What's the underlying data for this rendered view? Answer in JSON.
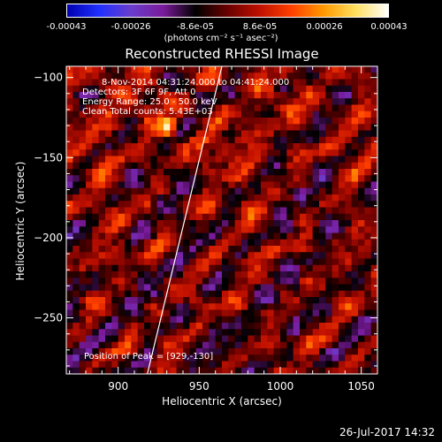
{
  "colorbar": {
    "ticks": [
      "-0.00043",
      "-0.00026",
      "-8.6e-05",
      "8.6e-05",
      "0.00026",
      "0.00043"
    ],
    "units": "(photons cm⁻² s⁻¹ asec⁻²)",
    "stops": [
      "#0000b0",
      "#2030ff",
      "#6a3dcc",
      "#7a1a9a",
      "#000000",
      "#6a0000",
      "#c01000",
      "#ff4000",
      "#ff9a00",
      "#ffe060",
      "#ffffff"
    ]
  },
  "chart_data": {
    "type": "heatmap",
    "title": "Reconstructed RHESSI Image",
    "xlabel": "Heliocentric X (arcsec)",
    "ylabel": "Heliocentric Y (arcsec)",
    "xlim": [
      868,
      1060
    ],
    "ylim": [
      -285,
      -93
    ],
    "xticks": [
      900,
      950,
      1000,
      1050
    ],
    "yticks": [
      -100,
      -150,
      -200,
      -250
    ],
    "value_range": [
      -0.00043,
      0.00043
    ],
    "peak": [
      929,
      -130
    ],
    "limb_line": {
      "x": [
        918,
        964
      ],
      "y": [
        -285,
        -93
      ]
    },
    "annotations": [
      "8-Nov-2014 04:31:24.000 to 04:41:24.000",
      "Detectors: 3F 6F 9F, Att 0",
      "Energy Range: 25.0 - 50.0 keV",
      "Clean    Total counts: 5.43E+03",
      "Position of Peak = [929,-130]"
    ]
  },
  "footer": {
    "date": "26-Jul-2017 14:32"
  }
}
